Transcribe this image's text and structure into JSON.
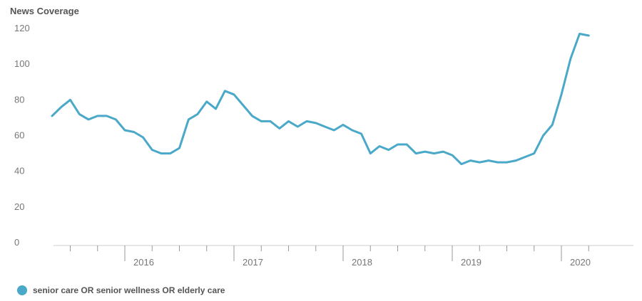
{
  "chart_data": {
    "type": "line",
    "ylabel": "News Coverage",
    "ylim": [
      0,
      120
    ],
    "yticks": [
      0,
      20,
      40,
      60,
      80,
      100,
      120
    ],
    "grid": false,
    "legend_position": "bottom-left",
    "x_year_labels": [
      "2016",
      "2017",
      "2018",
      "2019",
      "2020"
    ],
    "x": [
      "2015-05",
      "2015-06",
      "2015-07",
      "2015-08",
      "2015-09",
      "2015-10",
      "2015-11",
      "2015-12",
      "2016-01",
      "2016-02",
      "2016-03",
      "2016-04",
      "2016-05",
      "2016-06",
      "2016-07",
      "2016-08",
      "2016-09",
      "2016-10",
      "2016-11",
      "2016-12",
      "2017-01",
      "2017-02",
      "2017-03",
      "2017-04",
      "2017-05",
      "2017-06",
      "2017-07",
      "2017-08",
      "2017-09",
      "2017-10",
      "2017-11",
      "2017-12",
      "2018-01",
      "2018-02",
      "2018-03",
      "2018-04",
      "2018-05",
      "2018-06",
      "2018-07",
      "2018-08",
      "2018-09",
      "2018-10",
      "2018-11",
      "2018-12",
      "2019-01",
      "2019-02",
      "2019-03",
      "2019-04",
      "2019-05",
      "2019-06",
      "2019-07",
      "2019-08",
      "2019-09",
      "2019-10",
      "2019-11",
      "2019-12",
      "2020-01",
      "2020-02",
      "2020-03",
      "2020-04"
    ],
    "series": [
      {
        "name": "senior care OR senior wellness OR elderly care",
        "color": "#4aa8c9",
        "values": [
          71,
          76,
          80,
          72,
          69,
          71,
          71,
          69,
          63,
          62,
          59,
          52,
          50,
          50,
          53,
          69,
          72,
          79,
          75,
          85,
          83,
          77,
          71,
          68,
          68,
          64,
          68,
          65,
          68,
          67,
          65,
          63,
          66,
          63,
          61,
          50,
          54,
          52,
          55,
          55,
          50,
          51,
          50,
          51,
          49,
          44,
          46,
          45,
          46,
          45,
          45,
          46,
          48,
          50,
          60,
          66,
          83,
          103,
          117,
          116
        ]
      }
    ]
  }
}
